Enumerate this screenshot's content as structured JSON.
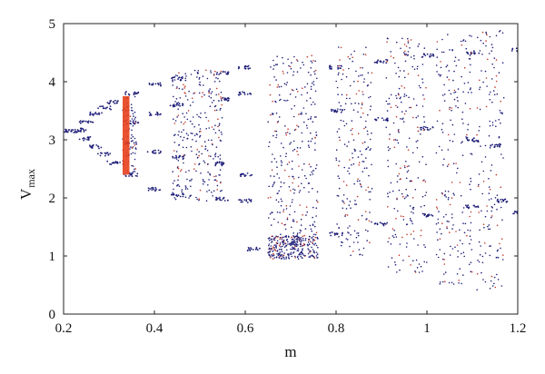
{
  "chart_data": {
    "type": "scatter",
    "title": "",
    "xlabel": "m",
    "ylabel_main": "V",
    "ylabel_sub": "max",
    "xlim": [
      0.2,
      1.2
    ],
    "ylim": [
      0,
      5
    ],
    "xticks": [
      0.2,
      0.4,
      0.6,
      0.8,
      1,
      1.2
    ],
    "xtick_labels": [
      "0.2",
      "0.4",
      "0.6",
      "0.8",
      "1",
      "1.2"
    ],
    "yticks": [
      0,
      1,
      2,
      3,
      4,
      5
    ],
    "ytick_labels": [
      "0",
      "1",
      "2",
      "3",
      "4",
      "5"
    ],
    "grid": false,
    "legend": "none",
    "colors": {
      "points": "#1f1f7a",
      "chaotic_tint": "#c0392b",
      "highlight": "#e8401c",
      "axes": "#222222"
    },
    "series": [
      {
        "role": "bifurcation-branches",
        "points": [
          [
            0.2,
            3.15
          ],
          [
            0.22,
            3.15
          ],
          [
            0.24,
            3.17
          ],
          [
            0.25,
            3.3
          ],
          [
            0.25,
            3.02
          ],
          [
            0.27,
            3.45
          ],
          [
            0.27,
            2.88
          ],
          [
            0.29,
            3.55
          ],
          [
            0.29,
            2.75
          ],
          [
            0.31,
            3.65
          ],
          [
            0.31,
            2.6
          ],
          [
            0.35,
            3.8
          ],
          [
            0.35,
            3.3
          ],
          [
            0.35,
            2.95
          ],
          [
            0.35,
            2.4
          ],
          [
            0.4,
            3.95
          ],
          [
            0.4,
            3.45
          ],
          [
            0.4,
            2.8
          ],
          [
            0.4,
            2.15
          ],
          [
            0.45,
            4.05
          ],
          [
            0.45,
            3.6
          ],
          [
            0.45,
            2.7
          ],
          [
            0.45,
            2.05
          ],
          [
            0.55,
            4.15
          ],
          [
            0.55,
            3.7
          ],
          [
            0.55,
            2.6
          ],
          [
            0.55,
            1.98
          ],
          [
            0.6,
            4.25
          ],
          [
            0.6,
            3.8
          ],
          [
            0.6,
            2.4
          ],
          [
            0.6,
            1.95
          ],
          [
            0.62,
            1.12
          ],
          [
            0.7,
            1.22
          ],
          [
            0.8,
            1.38
          ],
          [
            0.9,
            1.55
          ],
          [
            1.0,
            1.7
          ],
          [
            1.1,
            1.85
          ],
          [
            1.17,
            1.95
          ],
          [
            1.2,
            1.75
          ],
          [
            0.8,
            3.5
          ],
          [
            0.9,
            3.35
          ],
          [
            1.0,
            3.2
          ],
          [
            1.1,
            3.0
          ],
          [
            1.15,
            2.9
          ],
          [
            0.8,
            4.25
          ],
          [
            0.9,
            4.35
          ],
          [
            1.0,
            4.45
          ],
          [
            1.1,
            4.5
          ],
          [
            1.2,
            4.55
          ]
        ]
      },
      {
        "role": "chaotic-bands",
        "bands": [
          {
            "x": [
              0.33,
              0.36
            ],
            "y": [
              2.4,
              3.75
            ]
          },
          {
            "x": [
              0.44,
              0.55
            ],
            "y": [
              1.95,
              4.2
            ]
          },
          {
            "x": [
              0.65,
              0.76
            ],
            "y": [
              1.35,
              4.45
            ]
          },
          {
            "x": [
              0.65,
              0.76
            ],
            "y": [
              0.95,
              1.35
            ]
          },
          {
            "x": [
              0.8,
              0.88
            ],
            "y": [
              1.0,
              4.6
            ]
          },
          {
            "x": [
              0.91,
              1.0
            ],
            "y": [
              0.7,
              4.75
            ]
          },
          {
            "x": [
              1.02,
              1.1
            ],
            "y": [
              0.5,
              4.85
            ]
          },
          {
            "x": [
              1.11,
              1.17
            ],
            "y": [
              0.35,
              4.9
            ]
          }
        ]
      },
      {
        "role": "highlighted-region",
        "x": [
          0.33,
          0.345
        ],
        "y": [
          2.4,
          3.75
        ]
      }
    ]
  }
}
